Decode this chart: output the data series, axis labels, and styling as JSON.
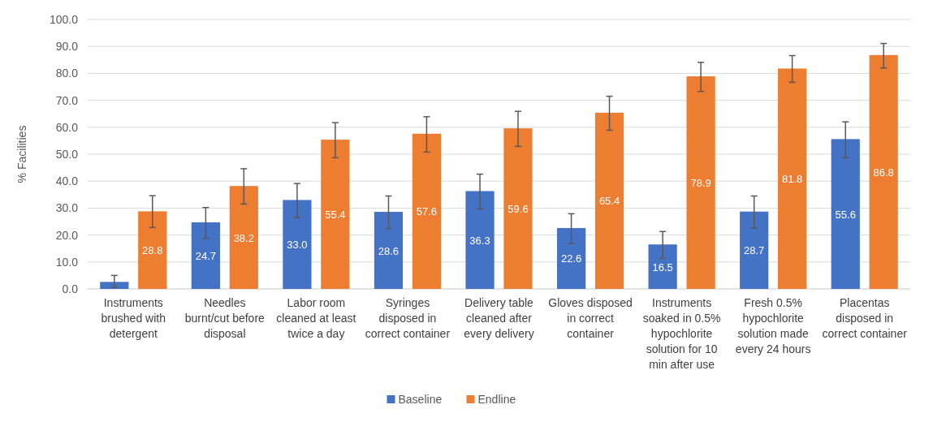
{
  "chart_data": {
    "type": "bar",
    "ylabel": "% Facilities",
    "categories": [
      "Instruments brushed with detergent",
      "Needles burnt/cut before disposal",
      "Labor room cleaned at least twice a day",
      "Syringes disposed in correct container",
      "Delivery table cleaned after every delivery",
      "Gloves disposed in correct container",
      "Instruments soaked in 0.5% hypochlorite solution for 10 min after use",
      "Fresh 0.5% hypochlorite solution made every 24 hours",
      "Placentas disposed in correct container"
    ],
    "series": [
      {
        "name": "Baseline",
        "color": "#4472c4",
        "values": [
          2.6,
          24.7,
          33.0,
          28.6,
          36.3,
          22.6,
          16.5,
          28.7,
          55.6
        ],
        "value_labels": [
          null,
          "24.7",
          "33.0",
          "28.6",
          "36.3",
          "22.6",
          "16.5",
          "28.7",
          "55.6"
        ],
        "errors": [
          [
            0.6,
            5.0
          ],
          [
            18.8,
            30.2
          ],
          [
            26.5,
            39.1
          ],
          [
            22.4,
            34.5
          ],
          [
            29.7,
            42.6
          ],
          [
            16.8,
            27.9
          ],
          [
            11.3,
            21.3
          ],
          [
            22.6,
            34.5
          ],
          [
            48.7,
            62.0
          ]
        ]
      },
      {
        "name": "Endline",
        "color": "#ed7d31",
        "values": [
          28.8,
          38.2,
          55.4,
          57.6,
          59.6,
          65.4,
          78.9,
          81.8,
          86.8
        ],
        "value_labels": [
          "28.8",
          "38.2",
          "55.4",
          "57.6",
          "59.6",
          "65.4",
          "78.9",
          "81.8",
          "86.8"
        ],
        "errors": [
          [
            22.8,
            34.6
          ],
          [
            31.5,
            44.6
          ],
          [
            48.7,
            61.7
          ],
          [
            50.8,
            63.9
          ],
          [
            52.9,
            65.9
          ],
          [
            58.9,
            71.5
          ],
          [
            73.3,
            84.1
          ],
          [
            76.7,
            86.6
          ],
          [
            82.0,
            91.1
          ]
        ]
      }
    ],
    "ylim": [
      0,
      100
    ],
    "yticks": [
      {
        "value": 0,
        "label": "0.0"
      },
      {
        "value": 10,
        "label": "10.0"
      },
      {
        "value": 20,
        "label": "20.0"
      },
      {
        "value": 30,
        "label": "30.0"
      },
      {
        "value": 40,
        "label": "40.0"
      },
      {
        "value": 50,
        "label": "50.0"
      },
      {
        "value": 60,
        "label": "60.0"
      },
      {
        "value": 70,
        "label": "70.0"
      },
      {
        "value": 80,
        "label": "80.0"
      },
      {
        "value": 90,
        "label": "90.0"
      },
      {
        "value": 100,
        "label": "100.0"
      }
    ],
    "grid": "y",
    "legend": "bottom"
  }
}
